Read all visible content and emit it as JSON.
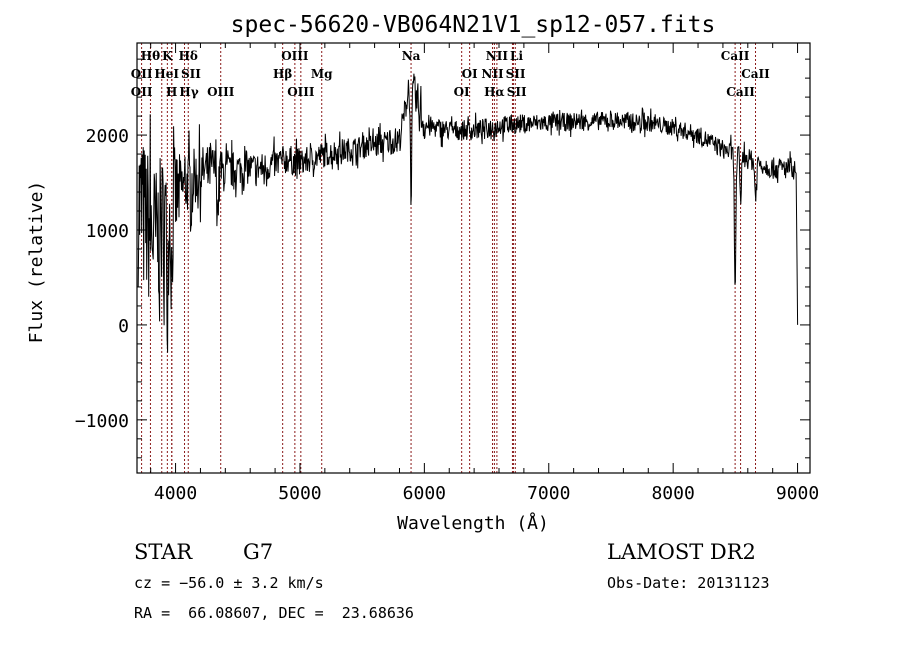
{
  "chart_data": {
    "type": "line",
    "title": "spec-56620-VB064N21V1_sp12-057.fits",
    "xlabel": "Wavelength (Å)",
    "ylabel": "Flux (relative)",
    "xlim": [
      3690,
      9100
    ],
    "ylim": [
      -1560,
      2970
    ],
    "xticks": [
      4000,
      5000,
      6000,
      7000,
      8000,
      9000
    ],
    "yticks": [
      -1000,
      0,
      1000,
      2000
    ],
    "grid": false,
    "series": [
      {
        "name": "flux",
        "knots": [
          [
            3700,
            1300
          ],
          [
            3750,
            1100
          ],
          [
            3800,
            1000
          ],
          [
            3850,
            900
          ],
          [
            3900,
            1100
          ],
          [
            3950,
            1200
          ],
          [
            4000,
            1350
          ],
          [
            4100,
            1500
          ],
          [
            4200,
            1600
          ],
          [
            4300,
            1650
          ],
          [
            4400,
            1600
          ],
          [
            4500,
            1650
          ],
          [
            4600,
            1650
          ],
          [
            4700,
            1650
          ],
          [
            4800,
            1700
          ],
          [
            4900,
            1750
          ],
          [
            5000,
            1700
          ],
          [
            5100,
            1750
          ],
          [
            5200,
            1800
          ],
          [
            5400,
            1850
          ],
          [
            5600,
            1900
          ],
          [
            5800,
            1950
          ],
          [
            5850,
            2300
          ],
          [
            5880,
            2550
          ],
          [
            5900,
            2500
          ],
          [
            5950,
            2300
          ],
          [
            6000,
            2100
          ],
          [
            6200,
            2050
          ],
          [
            6400,
            2050
          ],
          [
            6600,
            2100
          ],
          [
            6800,
            2120
          ],
          [
            7000,
            2130
          ],
          [
            7200,
            2140
          ],
          [
            7500,
            2150
          ],
          [
            7800,
            2130
          ],
          [
            8000,
            2080
          ],
          [
            8200,
            2000
          ],
          [
            8400,
            1850
          ],
          [
            8600,
            1750
          ],
          [
            8800,
            1650
          ],
          [
            8950,
            1650
          ],
          [
            8990,
            1500
          ],
          [
            9000,
            0
          ]
        ],
        "noise": [
          [
            3700,
            900
          ],
          [
            3950,
            700
          ],
          [
            4050,
            350
          ],
          [
            4300,
            250
          ],
          [
            4500,
            180
          ],
          [
            5500,
            120
          ],
          [
            5850,
            150
          ],
          [
            5950,
            250
          ],
          [
            6050,
            110
          ],
          [
            8000,
            90
          ],
          [
            9000,
            120
          ]
        ],
        "absorption": [
          [
            3934,
            -800
          ],
          [
            3969,
            -700
          ],
          [
            4340,
            -400
          ],
          [
            5893,
            -1100
          ],
          [
            8498,
            -1400
          ],
          [
            8542,
            -500
          ],
          [
            8662,
            -400
          ]
        ]
      }
    ],
    "lines": [
      {
        "wavelength": 3798,
        "label": "Hθ"
      },
      {
        "wavelength": 3934,
        "label": "K"
      },
      {
        "wavelength": 4102,
        "label": "Hδ"
      },
      {
        "wavelength": 4959,
        "label": "OIII"
      },
      {
        "wavelength": 5893,
        "label": "Na"
      },
      {
        "wavelength": 6583,
        "label": "NII"
      },
      {
        "wavelength": 6708,
        "label": "Li"
      },
      {
        "wavelength": 8498,
        "label": "CaII"
      },
      {
        "wavelength": 3727,
        "label": "OII"
      },
      {
        "wavelength": 3889,
        "label": "HeI"
      },
      {
        "wavelength": 4072,
        "label": "SII"
      },
      {
        "wavelength": 4861,
        "label": "Hβ"
      },
      {
        "wavelength": 5175,
        "label": "Mg"
      },
      {
        "wavelength": 6364,
        "label": "OI"
      },
      {
        "wavelength": 6548,
        "label": "NII"
      },
      {
        "wavelength": 6716,
        "label": "SII"
      },
      {
        "wavelength": 8662,
        "label": "CaII"
      },
      {
        "wavelength": 3727,
        "label": "OII"
      },
      {
        "wavelength": 3970,
        "label": "Hγ"
      },
      {
        "wavelength": 3969,
        "label": "H"
      },
      {
        "wavelength": 4363,
        "label": "OIII"
      },
      {
        "wavelength": 5007,
        "label": "OIII"
      },
      {
        "wavelength": 6300,
        "label": "OI"
      },
      {
        "wavelength": 6563,
        "label": "Hα"
      },
      {
        "wavelength": 6731,
        "label": "SII"
      },
      {
        "wavelength": 8542,
        "label": "CaII"
      }
    ]
  },
  "info": {
    "object_class": "STAR",
    "subclass": "G7",
    "cz": "cz = −56.0 ± 3.2 km/s",
    "coords": "RA =  66.08607, DEC =  23.68636",
    "survey": "LAMOST DR2",
    "obs_date": "Obs-Date: 20131123"
  }
}
